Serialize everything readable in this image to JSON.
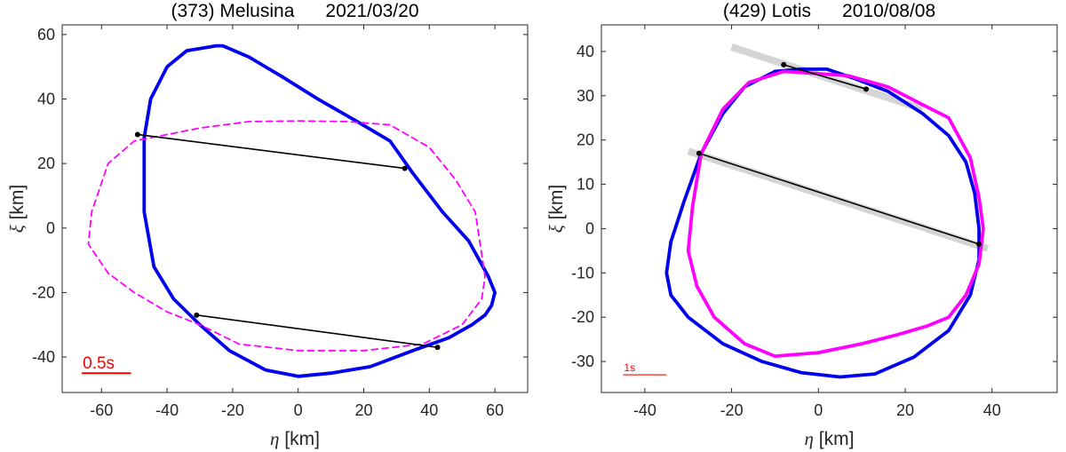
{
  "chart_data": [
    {
      "type": "line",
      "title": "(373) Melusina      2021/03/20",
      "xlabel_symbol": "η",
      "xlabel_unit": " [km]",
      "ylabel_symbol": "ξ",
      "ylabel_unit": " [km]",
      "xlim": [
        -72,
        70
      ],
      "ylim": [
        -51,
        63
      ],
      "xticks": [
        -60,
        -40,
        -20,
        0,
        20,
        40,
        60
      ],
      "yticks": [
        -40,
        -20,
        0,
        20,
        40,
        60
      ],
      "xtick_labels": [
        "-60",
        "-40",
        "-20",
        "0",
        "20",
        "40",
        "60"
      ],
      "ytick_labels": [
        "-40",
        "-20",
        "0",
        "20",
        "40",
        "60"
      ],
      "grid": false,
      "series": [
        {
          "name": "shape model contour",
          "style": "solid",
          "color": "#0000ee",
          "x": [
            -25,
            -34,
            -40,
            -45,
            -47,
            -47,
            -44,
            -38,
            -30,
            -21,
            -10,
            0,
            10,
            22,
            35,
            46,
            53,
            57,
            59,
            60,
            58,
            52,
            44,
            35,
            28,
            18,
            6,
            -5,
            -15,
            -23,
            -25
          ],
          "y": [
            56.5,
            55,
            50,
            40,
            28,
            5,
            -12,
            -22,
            -30,
            -38,
            -44,
            -46,
            -45,
            -43,
            -38,
            -34,
            -30,
            -27,
            -24,
            -20,
            -15,
            -4,
            5,
            17,
            27,
            33,
            40,
            47,
            53,
            56.5,
            56.5
          ]
        },
        {
          "name": "comparison contour",
          "style": "dashed",
          "color": "#ff00ff",
          "x": [
            -40,
            -50,
            -58,
            -63,
            -64,
            -58,
            -50,
            -40,
            -30,
            -18,
            0,
            20,
            38,
            50,
            56,
            57,
            54,
            48,
            40,
            28,
            15,
            0,
            -15,
            -30,
            -40
          ],
          "y": [
            29,
            27,
            20,
            5,
            -5,
            -14,
            -20,
            -26,
            -30,
            -36,
            -38,
            -38,
            -36,
            -30,
            -22,
            -15,
            5,
            15,
            25,
            32,
            33,
            33.2,
            33,
            31,
            29
          ]
        }
      ],
      "chords": [
        {
          "name": "chord 1",
          "x": [
            -49,
            32.5
          ],
          "y": [
            29,
            18.5
          ]
        },
        {
          "name": "chord 2",
          "x": [
            -31,
            42.5
          ],
          "y": [
            -27,
            -37
          ]
        }
      ],
      "scale_bar": {
        "label": "0.5s",
        "x": [
          -66,
          -51
        ],
        "y": -45
      }
    },
    {
      "type": "line",
      "title": "(429) Lotis      2010/08/08",
      "xlabel_symbol": "η",
      "xlabel_unit": " [km]",
      "ylabel_symbol": "ξ",
      "ylabel_unit": " [km]",
      "xlim": [
        -50,
        55
      ],
      "ylim": [
        -37,
        46
      ],
      "xticks": [
        -40,
        -20,
        0,
        20,
        40
      ],
      "yticks": [
        -30,
        -20,
        -10,
        0,
        10,
        20,
        30,
        40
      ],
      "xtick_labels": [
        "-40",
        "-20",
        "0",
        "20",
        "40"
      ],
      "ytick_labels": [
        "-30",
        "-20",
        "-10",
        "0",
        "10",
        "20",
        "30",
        "40"
      ],
      "grid": false,
      "series": [
        {
          "name": "shape model contour",
          "style": "solid",
          "color": "#0000ee",
          "x": [
            -10,
            -17,
            -22,
            -27,
            -31,
            -34,
            -35,
            -34,
            -30,
            -22,
            -13,
            -4,
            5,
            13,
            22,
            30,
            35,
            37,
            37,
            36,
            34,
            30,
            24,
            16,
            8,
            2,
            -4,
            -10
          ],
          "y": [
            35.5,
            32,
            26,
            17,
            6,
            -3,
            -10,
            -15,
            -20,
            -26,
            -30,
            -32.5,
            -33.5,
            -32.8,
            -29,
            -23,
            -15,
            -7,
            0,
            8,
            15,
            21,
            26,
            31,
            34,
            36,
            36,
            35.5
          ]
        },
        {
          "name": "comparison contour",
          "style": "solid",
          "color": "#ff00ff",
          "x": [
            -8,
            -16,
            -22,
            -27,
            -29,
            -30,
            -28,
            -24,
            -17,
            -10,
            0,
            10,
            18,
            25,
            30,
            34,
            37,
            38,
            37,
            35,
            30,
            24,
            16,
            7,
            0,
            -8
          ],
          "y": [
            35.5,
            33,
            27,
            17,
            5,
            -5,
            -13,
            -20,
            -26,
            -28.8,
            -28,
            -26,
            -24,
            -22,
            -20,
            -15,
            -8,
            0,
            7,
            16,
            25,
            28,
            32,
            34.5,
            35,
            35.5
          ]
        }
      ],
      "chords": [
        {
          "name": "chord 1",
          "x": [
            -8,
            11
          ],
          "y": [
            37,
            31.5
          ]
        },
        {
          "name": "chord 2",
          "x": [
            -27.5,
            37
          ],
          "y": [
            17,
            -3.5
          ]
        }
      ],
      "uncertainty_bands": [
        {
          "name": "chord 1 band",
          "x": [
            -20,
            24
          ],
          "y": [
            41,
            27
          ]
        },
        {
          "name": "chord 2 band",
          "x": [
            -30,
            39
          ],
          "y": [
            17.5,
            -4.5
          ]
        }
      ],
      "scale_bar": {
        "label": "1s",
        "x": [
          -45,
          -35
        ],
        "y": -33
      }
    }
  ]
}
